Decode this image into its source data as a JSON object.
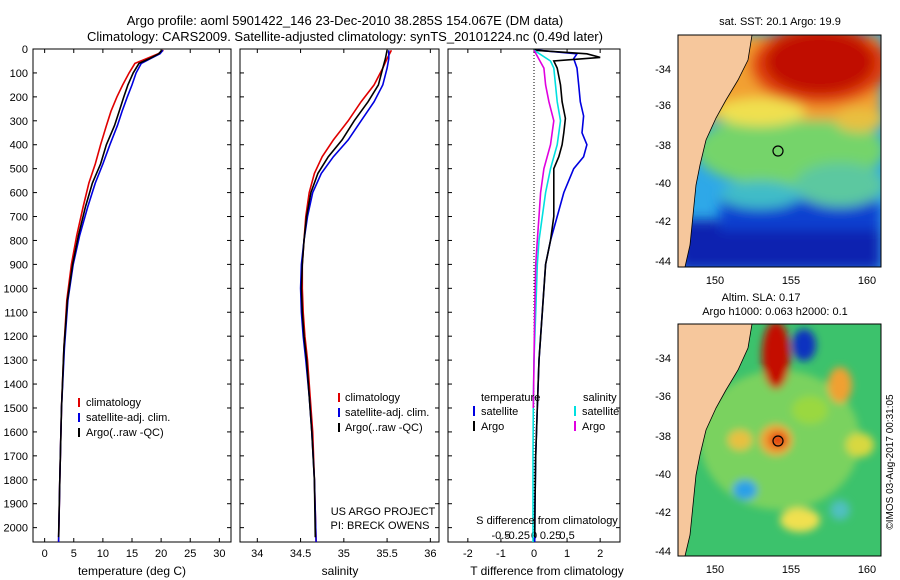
{
  "header": {
    "line1": "Argo profile: aoml 5901422_146 23-Dec-2010 38.285S 154.067E (DM data)",
    "line2": "Climatology: CARS2009. Satellite-adjusted climatology: synTS_20101224.nc (0.49d later)"
  },
  "colors": {
    "climatology": "#e00000",
    "satellite": "#0000e0",
    "argo": "#000000",
    "sat_s": "#00e0e0",
    "argo_s": "#e000e0"
  },
  "chart_data": [
    {
      "id": "temperature",
      "type": "line",
      "xlabel": "temperature (deg C)",
      "xlim": [
        -2,
        32
      ],
      "xticks": [
        0,
        5,
        10,
        15,
        20,
        25,
        30
      ],
      "ylim": [
        2060,
        0
      ],
      "yticks": [
        0,
        100,
        200,
        300,
        400,
        500,
        600,
        700,
        800,
        900,
        1000,
        1100,
        1200,
        1300,
        1400,
        1500,
        1600,
        1700,
        1800,
        1900,
        2000
      ],
      "legend": {
        "position": "lower-center",
        "entries": [
          "climatology",
          "satellite-adj. clim.",
          "Argo(..raw -QC)"
        ]
      },
      "series": [
        {
          "name": "climatology",
          "key": "climatology",
          "points": [
            [
              20.4,
              5
            ],
            [
              19.5,
              20
            ],
            [
              17.5,
              40
            ],
            [
              15.5,
              60
            ],
            [
              14.5,
              100
            ],
            [
              13.4,
              150
            ],
            [
              12.4,
              200
            ],
            [
              11.4,
              260
            ],
            [
              10.6,
              320
            ],
            [
              9.6,
              400
            ],
            [
              8.7,
              480
            ],
            [
              7.6,
              560
            ],
            [
              6.6,
              660
            ],
            [
              5.5,
              780
            ],
            [
              4.6,
              900
            ],
            [
              3.8,
              1050
            ],
            [
              3.3,
              1250
            ],
            [
              2.9,
              1500
            ],
            [
              2.6,
              1800
            ],
            [
              2.4,
              2060
            ]
          ]
        },
        {
          "name": "satellite-adj. clim.",
          "key": "satellite",
          "points": [
            [
              20.3,
              5
            ],
            [
              19.8,
              20
            ],
            [
              18.2,
              40
            ],
            [
              16.6,
              60
            ],
            [
              15.7,
              100
            ],
            [
              15.0,
              150
            ],
            [
              14.2,
              200
            ],
            [
              13.3,
              260
            ],
            [
              12.5,
              320
            ],
            [
              11.2,
              400
            ],
            [
              10.0,
              480
            ],
            [
              8.7,
              560
            ],
            [
              7.4,
              660
            ],
            [
              6.0,
              780
            ],
            [
              4.9,
              900
            ],
            [
              4.0,
              1050
            ],
            [
              3.4,
              1250
            ],
            [
              2.9,
              1500
            ],
            [
              2.6,
              1800
            ],
            [
              2.4,
              2060
            ]
          ]
        },
        {
          "name": "Argo(..raw -QC)",
          "key": "argo",
          "points": [
            [
              20.1,
              5
            ],
            [
              19.6,
              20
            ],
            [
              18.0,
              40
            ],
            [
              16.2,
              60
            ],
            [
              15.2,
              100
            ],
            [
              14.3,
              150
            ],
            [
              13.6,
              200
            ],
            [
              12.8,
              260
            ],
            [
              12.0,
              320
            ],
            [
              10.6,
              400
            ],
            [
              9.6,
              480
            ],
            [
              8.2,
              560
            ],
            [
              7.0,
              660
            ],
            [
              5.8,
              780
            ],
            [
              4.8,
              900
            ],
            [
              3.9,
              1050
            ],
            [
              3.3,
              1250
            ],
            [
              2.9,
              1500
            ],
            [
              2.6,
              1800
            ],
            [
              2.4,
              2040
            ]
          ]
        }
      ]
    },
    {
      "id": "salinity",
      "type": "line",
      "xlabel": "salinity",
      "xlim": [
        33.8,
        36.1
      ],
      "xticks": [
        34,
        34.5,
        35,
        35.5,
        36
      ],
      "ylim": [
        2060,
        0
      ],
      "legend": {
        "position": "lower-center",
        "entries": [
          "climatology",
          "satellite-adj. clim.",
          "Argo(..raw -QC)"
        ]
      },
      "annotation": {
        "line1": "US ARGO PROJECT",
        "line2": "PI: BRECK OWENS"
      },
      "series": [
        {
          "name": "climatology",
          "key": "climatology",
          "points": [
            [
              35.55,
              5
            ],
            [
              35.5,
              40
            ],
            [
              35.45,
              80
            ],
            [
              35.35,
              150
            ],
            [
              35.2,
              220
            ],
            [
              35.05,
              300
            ],
            [
              34.88,
              380
            ],
            [
              34.75,
              450
            ],
            [
              34.66,
              520
            ],
            [
              34.6,
              600
            ],
            [
              34.56,
              700
            ],
            [
              34.54,
              800
            ],
            [
              34.52,
              900
            ],
            [
              34.52,
              1000
            ],
            [
              34.53,
              1100
            ],
            [
              34.55,
              1200
            ],
            [
              34.58,
              1300
            ],
            [
              34.61,
              1450
            ],
            [
              34.64,
              1600
            ],
            [
              34.66,
              1800
            ],
            [
              34.68,
              2060
            ]
          ]
        },
        {
          "name": "satellite-adj. clim.",
          "key": "satellite",
          "points": [
            [
              35.52,
              5
            ],
            [
              35.52,
              40
            ],
            [
              35.5,
              80
            ],
            [
              35.45,
              150
            ],
            [
              35.35,
              220
            ],
            [
              35.2,
              300
            ],
            [
              35.05,
              380
            ],
            [
              34.88,
              450
            ],
            [
              34.74,
              520
            ],
            [
              34.64,
              600
            ],
            [
              34.58,
              700
            ],
            [
              34.54,
              800
            ],
            [
              34.51,
              900
            ],
            [
              34.5,
              1000
            ],
            [
              34.51,
              1100
            ],
            [
              34.53,
              1200
            ],
            [
              34.56,
              1300
            ],
            [
              34.6,
              1450
            ],
            [
              34.63,
              1600
            ],
            [
              34.66,
              1800
            ],
            [
              34.68,
              2060
            ]
          ]
        },
        {
          "name": "Argo(..raw -QC)",
          "key": "argo",
          "points": [
            [
              35.5,
              5
            ],
            [
              35.48,
              40
            ],
            [
              35.45,
              80
            ],
            [
              35.4,
              150
            ],
            [
              35.28,
              220
            ],
            [
              35.12,
              300
            ],
            [
              34.98,
              380
            ],
            [
              34.82,
              450
            ],
            [
              34.7,
              520
            ],
            [
              34.62,
              600
            ],
            [
              34.57,
              700
            ],
            [
              34.54,
              800
            ],
            [
              34.52,
              900
            ],
            [
              34.51,
              1000
            ],
            [
              34.52,
              1100
            ],
            [
              34.54,
              1200
            ],
            [
              34.57,
              1300
            ],
            [
              34.6,
              1450
            ],
            [
              34.63,
              1600
            ],
            [
              34.66,
              1800
            ],
            [
              34.67,
              2040
            ]
          ]
        }
      ]
    },
    {
      "id": "difference",
      "type": "line",
      "xlabel": "T difference from climatology",
      "xlabel_top": "S difference from climatology",
      "xlim": [
        -2.6,
        2.6
      ],
      "xticks": [
        -2,
        -1,
        0,
        1,
        2
      ],
      "xticks_s": [
        {
          "label": "-0.5",
          "value": -1
        },
        {
          "label": "-0.25",
          "value": -0.5
        },
        {
          "label": "0",
          "value": 0
        },
        {
          "label": "0.25",
          "value": 0.5
        },
        {
          "label": "0.5",
          "value": 1
        }
      ],
      "ylim": [
        2060,
        0
      ],
      "legend": {
        "temperature_header": "temperature",
        "salinity_header": "salinity",
        "entries": [
          "satellite",
          "Argo",
          "satellite",
          "Argo"
        ]
      },
      "series": [
        {
          "name": "T satellite",
          "key": "satellite",
          "points": [
            [
              0.1,
              5
            ],
            [
              1.3,
              20
            ],
            [
              1.2,
              40
            ],
            [
              1.3,
              80
            ],
            [
              1.35,
              150
            ],
            [
              1.4,
              220
            ],
            [
              1.5,
              280
            ],
            [
              1.45,
              350
            ],
            [
              1.6,
              400
            ],
            [
              1.5,
              450
            ],
            [
              1.2,
              500
            ],
            [
              0.9,
              600
            ],
            [
              0.7,
              700
            ],
            [
              0.5,
              800
            ],
            [
              0.35,
              900
            ],
            [
              0.25,
              1100
            ],
            [
              0.15,
              1300
            ],
            [
              0.1,
              1500
            ],
            [
              0.05,
              1700
            ],
            [
              0.03,
              1900
            ],
            [
              0.02,
              2060
            ]
          ]
        },
        {
          "name": "T Argo",
          "key": "argo",
          "points": [
            [
              0.0,
              5
            ],
            [
              1.6,
              20
            ],
            [
              2.0,
              35
            ],
            [
              0.6,
              50
            ],
            [
              0.7,
              80
            ],
            [
              0.8,
              150
            ],
            [
              0.85,
              220
            ],
            [
              0.95,
              290
            ],
            [
              0.9,
              350
            ],
            [
              0.85,
              400
            ],
            [
              0.75,
              450
            ],
            [
              0.6,
              500
            ],
            [
              0.6,
              600
            ],
            [
              0.6,
              700
            ],
            [
              0.5,
              800
            ],
            [
              0.35,
              900
            ],
            [
              0.25,
              1100
            ],
            [
              0.15,
              1300
            ],
            [
              0.1,
              1500
            ],
            [
              0.05,
              1700
            ],
            [
              0.03,
              1900
            ],
            [
              0.02,
              2040
            ]
          ]
        },
        {
          "name": "S satellite",
          "key": "sat_s",
          "points": [
            [
              0.0,
              5
            ],
            [
              0.5,
              50
            ],
            [
              0.6,
              80
            ],
            [
              0.65,
              150
            ],
            [
              0.7,
              220
            ],
            [
              0.8,
              300
            ],
            [
              0.7,
              400
            ],
            [
              0.5,
              500
            ],
            [
              0.35,
              600
            ],
            [
              0.25,
              700
            ],
            [
              0.15,
              800
            ],
            [
              0.1,
              900
            ],
            [
              0.05,
              1100
            ],
            [
              0.0,
              1300
            ],
            [
              -0.02,
              1500
            ],
            [
              -0.03,
              1700
            ],
            [
              -0.03,
              1900
            ],
            [
              -0.03,
              2060
            ]
          ]
        },
        {
          "name": "S Argo",
          "key": "argo_s",
          "points": [
            [
              0.0,
              5
            ],
            [
              0.3,
              80
            ],
            [
              0.35,
              150
            ],
            [
              0.45,
              220
            ],
            [
              0.6,
              300
            ],
            [
              0.5,
              400
            ],
            [
              0.3,
              500
            ],
            [
              0.2,
              600
            ],
            [
              0.15,
              700
            ],
            [
              0.1,
              800
            ],
            [
              0.05,
              900
            ],
            [
              0.02,
              1100
            ],
            [
              0.0,
              1300
            ],
            [
              -0.02,
              1500
            ]
          ]
        }
      ]
    }
  ],
  "maps": {
    "sst": {
      "title": "sat. SST: 20.1  Argo: 19.9",
      "xticks": [
        "150",
        "155",
        "160"
      ],
      "yticks": [
        "-34",
        "-36",
        "-38",
        "-40",
        "-42",
        "-44"
      ]
    },
    "sla": {
      "title1": "Altim. SLA: 0.17",
      "title2": "Argo h1000: 0.063 h2000: 0.1",
      "xticks": [
        "150",
        "155",
        "160"
      ],
      "yticks": [
        "-34",
        "-36",
        "-38",
        "-40",
        "-42",
        "-44"
      ]
    }
  },
  "credit": "©IMOS 03-Aug-2017 00:31:05"
}
